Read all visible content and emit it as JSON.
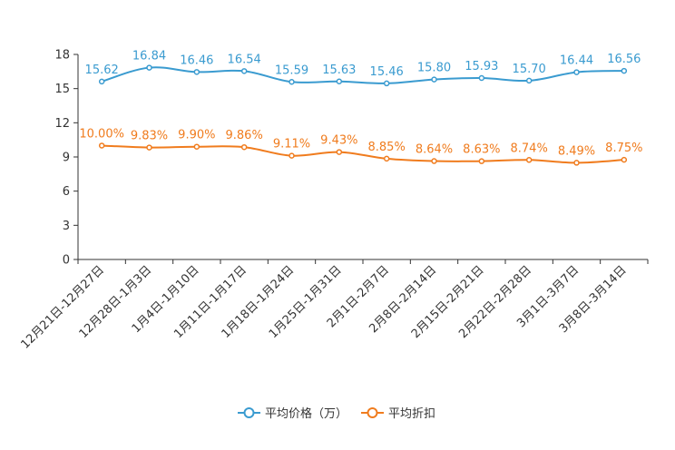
{
  "chart_data": {
    "type": "line",
    "title": "",
    "xlabel": "",
    "ylabel": "",
    "ylim": [
      0,
      18
    ],
    "yticks": [
      0,
      3,
      6,
      9,
      12,
      15,
      18
    ],
    "grid": false,
    "legend_position": "bottom-center",
    "categories": [
      "12月21日-12月27日",
      "12月28日-1月3日",
      "1月4日-1月10日",
      "1月11日-1月17日",
      "1月18日-1月24日",
      "1月25日-1月31日",
      "2月1日-2月7日",
      "2月8日-2月14日",
      "2月15日-2月21日",
      "2月22日-2月28日",
      "3月1日-3月7日",
      "3月8日-3月14日"
    ],
    "series": [
      {
        "name": "平均价格（万）",
        "color": "#3a9bd0",
        "values": [
          15.62,
          16.84,
          16.46,
          16.54,
          15.59,
          15.63,
          15.46,
          15.8,
          15.93,
          15.7,
          16.44,
          16.56
        ],
        "labels": [
          "15.62",
          "16.84",
          "16.46",
          "16.54",
          "15.59",
          "15.63",
          "15.46",
          "15.80",
          "15.93",
          "15.70",
          "16.44",
          "16.56"
        ]
      },
      {
        "name": "平均折扣",
        "color": "#f07c1e",
        "values": [
          10.0,
          9.83,
          9.9,
          9.86,
          9.11,
          9.43,
          8.85,
          8.64,
          8.63,
          8.74,
          8.49,
          8.75
        ],
        "labels": [
          "10.00%",
          "9.83%",
          "9.90%",
          "9.86%",
          "9.11%",
          "9.43%",
          "8.85%",
          "8.64%",
          "8.63%",
          "8.74%",
          "8.49%",
          "8.75%"
        ]
      }
    ]
  }
}
